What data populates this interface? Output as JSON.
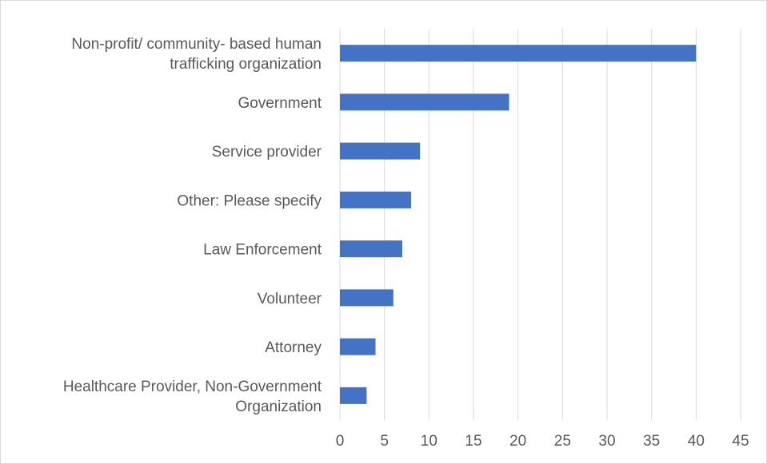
{
  "chart_data": {
    "type": "bar",
    "orientation": "horizontal",
    "categories": [
      [
        "Non-profit/ community- based human",
        "trafficking organization"
      ],
      [
        "Government"
      ],
      [
        "Service provider"
      ],
      [
        "Other: Please specify"
      ],
      [
        "Law Enforcement"
      ],
      [
        "Volunteer"
      ],
      [
        "Attorney"
      ],
      [
        "Healthcare Provider, Non-Government",
        "Organization"
      ]
    ],
    "values": [
      40,
      19,
      9,
      8,
      7,
      6,
      4,
      3
    ],
    "xlim": [
      0,
      45
    ],
    "xticks": [
      "0",
      "5",
      "10",
      "15",
      "20",
      "25",
      "30",
      "35",
      "40",
      "45"
    ],
    "grid": true,
    "bar_color": "#4472c4",
    "grid_color": "#d9d9d9",
    "title": "",
    "xlabel": "",
    "ylabel": ""
  }
}
